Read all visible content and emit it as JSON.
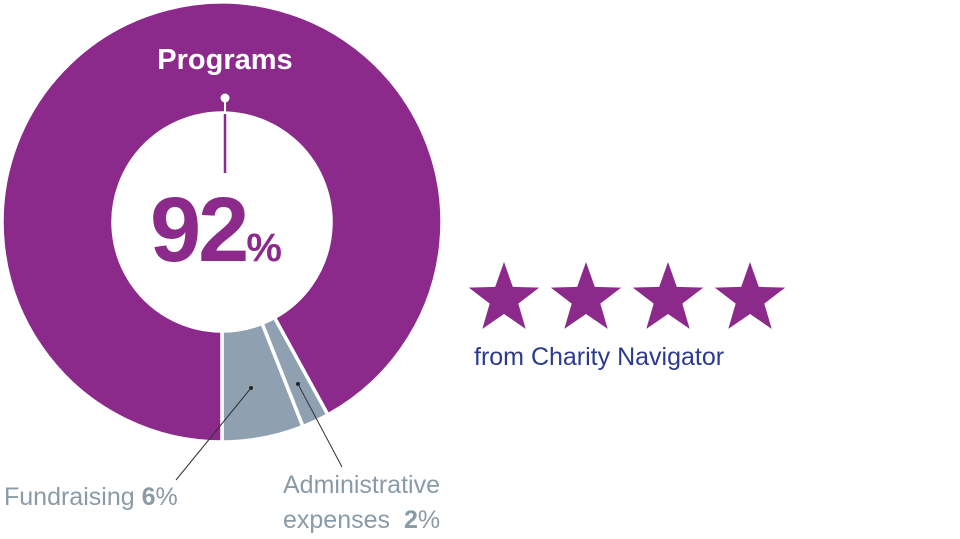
{
  "chart_data": {
    "type": "pie",
    "style": "donut",
    "slices": [
      {
        "name": "Programs",
        "value": 92,
        "color": "#8b2a8b"
      },
      {
        "name": "Fundraising",
        "value": 6,
        "color": "#8fa1b1"
      },
      {
        "name": "Administrative expenses",
        "value": 2,
        "color": "#8fa1b1"
      }
    ],
    "center_value": "92",
    "center_unit": "%",
    "labels": {
      "programs": "Programs",
      "fundraising_name": "Fundraising",
      "fundraising_value": "6",
      "admin_line1": "Administrative",
      "admin_line2": "expenses",
      "admin_value": "2",
      "pct": "%"
    }
  },
  "rating": {
    "stars": 4,
    "star_color": "#8b2a8b",
    "source": "from Charity Navigator"
  }
}
